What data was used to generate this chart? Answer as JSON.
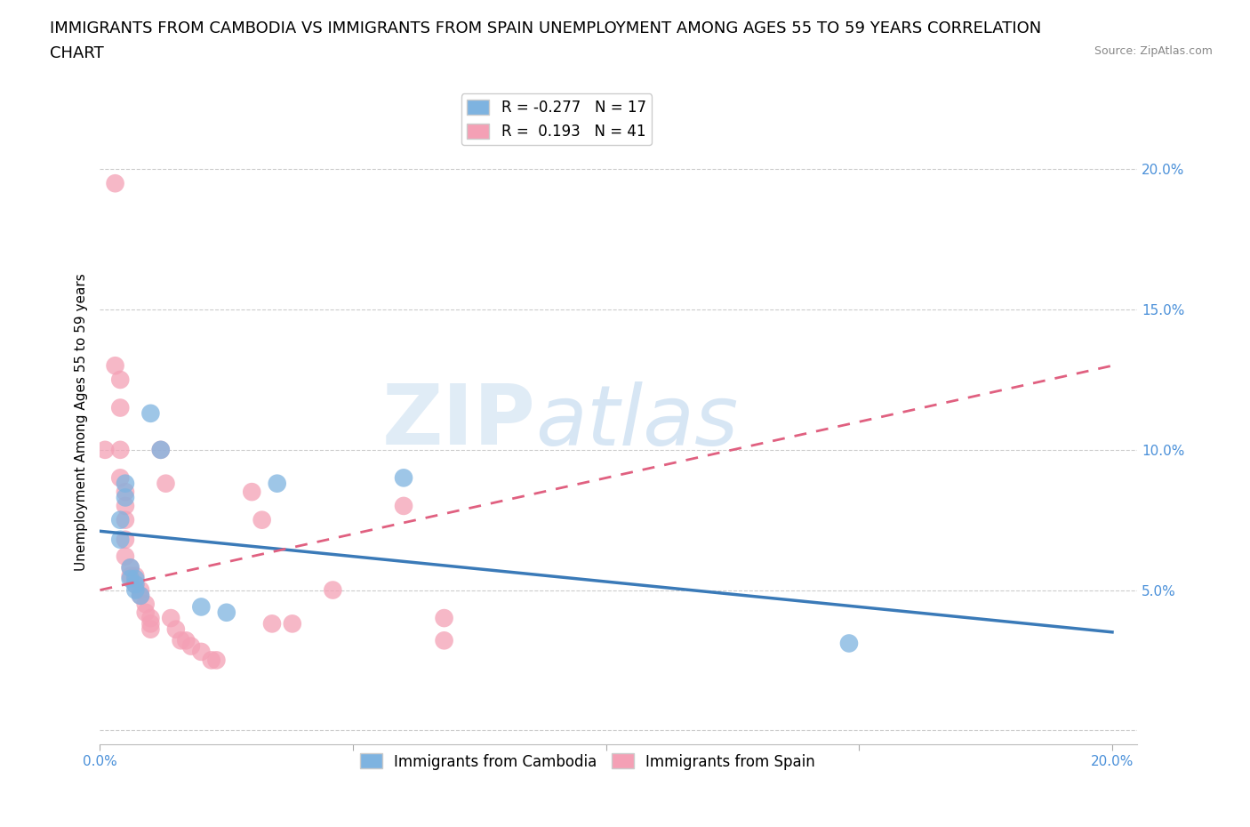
{
  "title_line1": "IMMIGRANTS FROM CAMBODIA VS IMMIGRANTS FROM SPAIN UNEMPLOYMENT AMONG AGES 55 TO 59 YEARS CORRELATION",
  "title_line2": "CHART",
  "source": "Source: ZipAtlas.com",
  "ylabel": "Unemployment Among Ages 55 to 59 years",
  "xlim": [
    0.0,
    0.205
  ],
  "ylim": [
    -0.005,
    0.225
  ],
  "xticks": [
    0.0,
    0.05,
    0.1,
    0.15,
    0.2
  ],
  "xticklabels": [
    "0.0%",
    "",
    "",
    "",
    "20.0%"
  ],
  "yticks": [
    0.0,
    0.05,
    0.1,
    0.15,
    0.2
  ],
  "yticklabels": [
    "",
    "5.0%",
    "10.0%",
    "15.0%",
    "20.0%"
  ],
  "watermark_zip": "ZIP",
  "watermark_atlas": "atlas",
  "cambodia_color": "#7eb3e0",
  "spain_color": "#f4a0b5",
  "cambodia_line_color": "#3a7ab8",
  "spain_line_color": "#e06080",
  "cambodia_R": -0.277,
  "cambodia_N": 17,
  "spain_R": 0.193,
  "spain_N": 41,
  "cambodia_line": [
    [
      0.0,
      0.071
    ],
    [
      0.2,
      0.035
    ]
  ],
  "spain_line": [
    [
      0.0,
      0.05
    ],
    [
      0.2,
      0.13
    ]
  ],
  "cambodia_points": [
    [
      0.004,
      0.075
    ],
    [
      0.004,
      0.068
    ],
    [
      0.005,
      0.088
    ],
    [
      0.005,
      0.083
    ],
    [
      0.006,
      0.058
    ],
    [
      0.006,
      0.054
    ],
    [
      0.007,
      0.054
    ],
    [
      0.007,
      0.052
    ],
    [
      0.007,
      0.05
    ],
    [
      0.008,
      0.048
    ],
    [
      0.01,
      0.113
    ],
    [
      0.012,
      0.1
    ],
    [
      0.02,
      0.044
    ],
    [
      0.025,
      0.042
    ],
    [
      0.035,
      0.088
    ],
    [
      0.06,
      0.09
    ],
    [
      0.148,
      0.031
    ]
  ],
  "spain_points": [
    [
      0.001,
      0.1
    ],
    [
      0.003,
      0.195
    ],
    [
      0.003,
      0.13
    ],
    [
      0.004,
      0.125
    ],
    [
      0.004,
      0.115
    ],
    [
      0.004,
      0.1
    ],
    [
      0.004,
      0.09
    ],
    [
      0.005,
      0.085
    ],
    [
      0.005,
      0.08
    ],
    [
      0.005,
      0.075
    ],
    [
      0.005,
      0.068
    ],
    [
      0.005,
      0.062
    ],
    [
      0.006,
      0.058
    ],
    [
      0.006,
      0.055
    ],
    [
      0.007,
      0.055
    ],
    [
      0.007,
      0.052
    ],
    [
      0.008,
      0.05
    ],
    [
      0.008,
      0.048
    ],
    [
      0.009,
      0.045
    ],
    [
      0.009,
      0.042
    ],
    [
      0.01,
      0.04
    ],
    [
      0.01,
      0.038
    ],
    [
      0.01,
      0.036
    ],
    [
      0.012,
      0.1
    ],
    [
      0.013,
      0.088
    ],
    [
      0.014,
      0.04
    ],
    [
      0.015,
      0.036
    ],
    [
      0.016,
      0.032
    ],
    [
      0.017,
      0.032
    ],
    [
      0.018,
      0.03
    ],
    [
      0.02,
      0.028
    ],
    [
      0.022,
      0.025
    ],
    [
      0.023,
      0.025
    ],
    [
      0.03,
      0.085
    ],
    [
      0.032,
      0.075
    ],
    [
      0.034,
      0.038
    ],
    [
      0.038,
      0.038
    ],
    [
      0.046,
      0.05
    ],
    [
      0.06,
      0.08
    ],
    [
      0.068,
      0.04
    ],
    [
      0.068,
      0.032
    ]
  ],
  "grid_color": "#cccccc",
  "background_color": "#ffffff",
  "title_fontsize": 13,
  "axis_label_fontsize": 11,
  "tick_fontsize": 11,
  "legend_fontsize": 12,
  "tick_color": "#4a90d9"
}
